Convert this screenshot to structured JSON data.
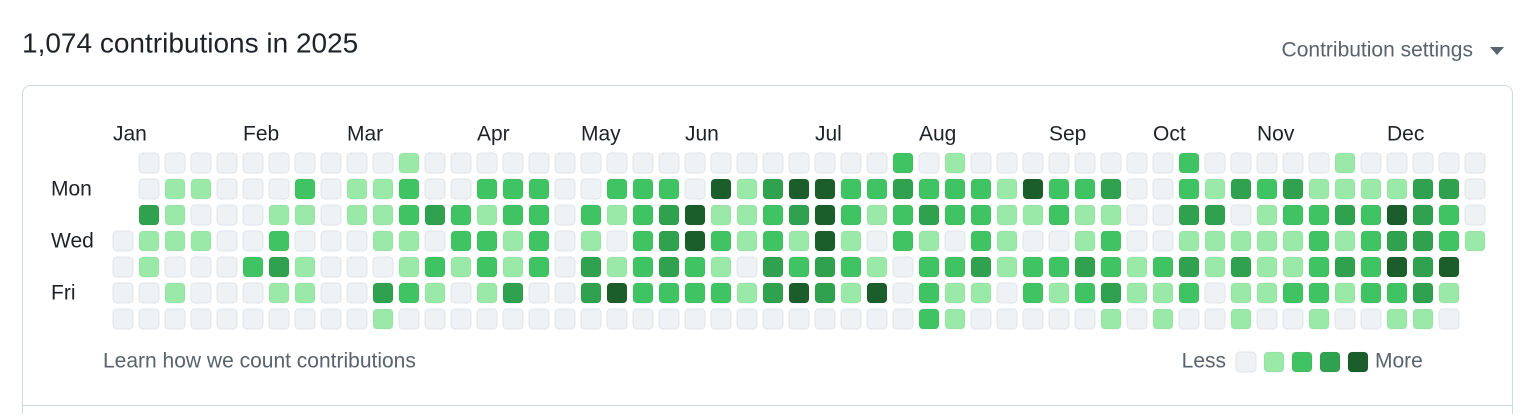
{
  "header": {
    "title": "1,074 contributions in 2025",
    "settings": "Contribution settings"
  },
  "graph": {
    "months": [
      "Jan",
      "Feb",
      "Mar",
      "Apr",
      "May",
      "Jun",
      "Jul",
      "Aug",
      "Sep",
      "Oct",
      "Nov",
      "Dec"
    ],
    "level_colors": [
      "#eff2f5",
      "#9be9a8",
      "#40c463",
      "#30a14e",
      "#1b5e2c"
    ],
    "rows": [
      {
        "levels": [
          null,
          0,
          0,
          0,
          0,
          0,
          0,
          0,
          0,
          0,
          0,
          1,
          0,
          0,
          0,
          0,
          0,
          0,
          0,
          0,
          0,
          0,
          0,
          0,
          0,
          0,
          0,
          0,
          0,
          0,
          2,
          0,
          1,
          0,
          0,
          0,
          0,
          0,
          0,
          0,
          0,
          2,
          0,
          0,
          0,
          0,
          0,
          1,
          0,
          0,
          0,
          0,
          0
        ]
      },
      {
        "label": "Mon",
        "levels": [
          null,
          0,
          1,
          1,
          0,
          0,
          0,
          2,
          0,
          1,
          1,
          2,
          0,
          0,
          2,
          2,
          2,
          0,
          0,
          2,
          2,
          2,
          0,
          4,
          1,
          3,
          4,
          4,
          2,
          2,
          3,
          2,
          2,
          2,
          1,
          4,
          2,
          2,
          3,
          0,
          0,
          2,
          1,
          3,
          2,
          3,
          1,
          1,
          1,
          1,
          3,
          3,
          0
        ]
      },
      {
        "levels": [
          null,
          3,
          1,
          0,
          0,
          0,
          1,
          1,
          0,
          1,
          1,
          2,
          3,
          2,
          1,
          2,
          2,
          0,
          2,
          1,
          2,
          3,
          4,
          1,
          1,
          2,
          3,
          4,
          2,
          1,
          2,
          3,
          2,
          2,
          1,
          1,
          2,
          1,
          1,
          0,
          0,
          3,
          3,
          0,
          1,
          2,
          2,
          3,
          2,
          4,
          3,
          2,
          0
        ]
      },
      {
        "label": "Wed",
        "levels": [
          0,
          1,
          1,
          1,
          0,
          0,
          2,
          0,
          0,
          0,
          1,
          1,
          0,
          2,
          2,
          1,
          2,
          0,
          1,
          0,
          2,
          3,
          4,
          2,
          1,
          2,
          1,
          4,
          1,
          0,
          2,
          1,
          0,
          2,
          1,
          0,
          0,
          1,
          2,
          0,
          0,
          1,
          1,
          1,
          1,
          1,
          2,
          1,
          2,
          3,
          3,
          2,
          1
        ]
      },
      {
        "levels": [
          0,
          1,
          0,
          0,
          0,
          2,
          3,
          1,
          0,
          0,
          0,
          1,
          2,
          1,
          2,
          1,
          2,
          0,
          3,
          1,
          2,
          3,
          2,
          1,
          0,
          3,
          2,
          3,
          2,
          1,
          0,
          2,
          2,
          3,
          1,
          2,
          2,
          3,
          2,
          1,
          2,
          3,
          1,
          3,
          1,
          1,
          2,
          3,
          2,
          4,
          3,
          4,
          null
        ]
      },
      {
        "label": "Fri",
        "levels": [
          0,
          0,
          1,
          0,
          0,
          0,
          1,
          1,
          0,
          0,
          3,
          2,
          1,
          0,
          1,
          3,
          0,
          0,
          3,
          4,
          2,
          2,
          2,
          2,
          1,
          3,
          4,
          3,
          1,
          4,
          0,
          2,
          1,
          1,
          0,
          2,
          1,
          2,
          3,
          1,
          1,
          2,
          0,
          1,
          1,
          2,
          2,
          1,
          2,
          2,
          3,
          1,
          null
        ]
      },
      {
        "levels": [
          0,
          0,
          0,
          0,
          0,
          0,
          0,
          0,
          0,
          0,
          1,
          0,
          0,
          0,
          0,
          0,
          0,
          0,
          0,
          0,
          0,
          0,
          0,
          0,
          0,
          0,
          0,
          0,
          0,
          0,
          0,
          2,
          1,
          0,
          0,
          0,
          0,
          0,
          1,
          0,
          1,
          0,
          0,
          1,
          0,
          0,
          1,
          0,
          0,
          1,
          1,
          0,
          null
        ]
      }
    ],
    "footer_link": "Learn how we count contributions",
    "legend": {
      "less": "Less",
      "more": "More",
      "levels": [
        0,
        1,
        2,
        3,
        4
      ]
    }
  }
}
